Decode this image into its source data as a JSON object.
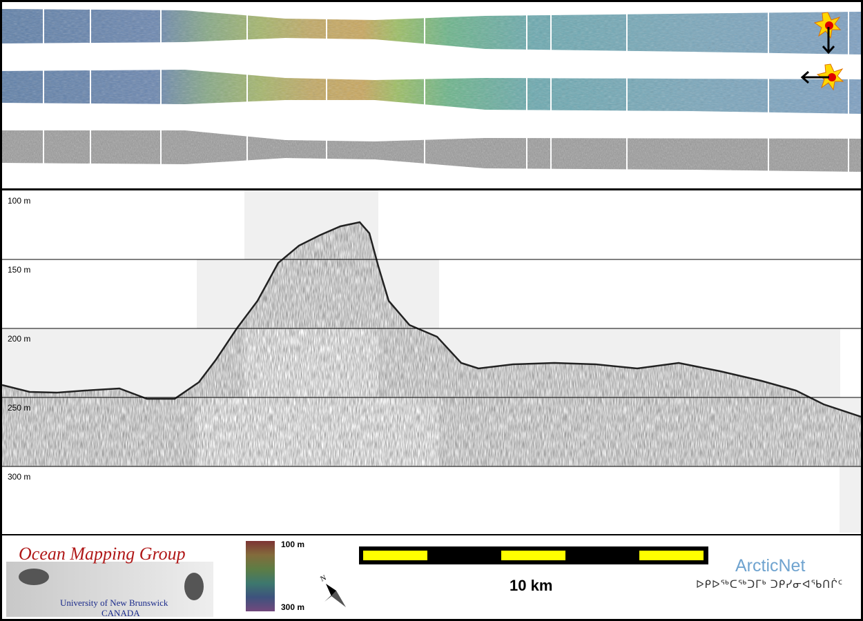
{
  "profile": {
    "depth_labels": [
      "100 m",
      "150 m",
      "200 m",
      "250 m",
      "300 m"
    ]
  },
  "colorbar": {
    "top_label": "100 m",
    "bottom_label": "300 m"
  },
  "scalebar": {
    "label": "10 km",
    "colors": {
      "bar": "#000000",
      "fill": "#ffff00"
    }
  },
  "logos": {
    "omg_title": "Ocean Mapping Group",
    "omg_university": "University of New Brunswick",
    "omg_country": "CANADA",
    "arcticnet_name": "ArcticNet",
    "arcticnet_syllabics": "ᐅᑭᐅᖅᑕᖅᑐᒥᒃ ᑐᑭᓯᓂᐊᖃᑎᒌᑦ"
  },
  "icons": {
    "sun": "sun-icon",
    "arrow_down": "arrow-down-icon",
    "arrow_left": "arrow-left-icon",
    "north": "north-arrow-icon"
  }
}
